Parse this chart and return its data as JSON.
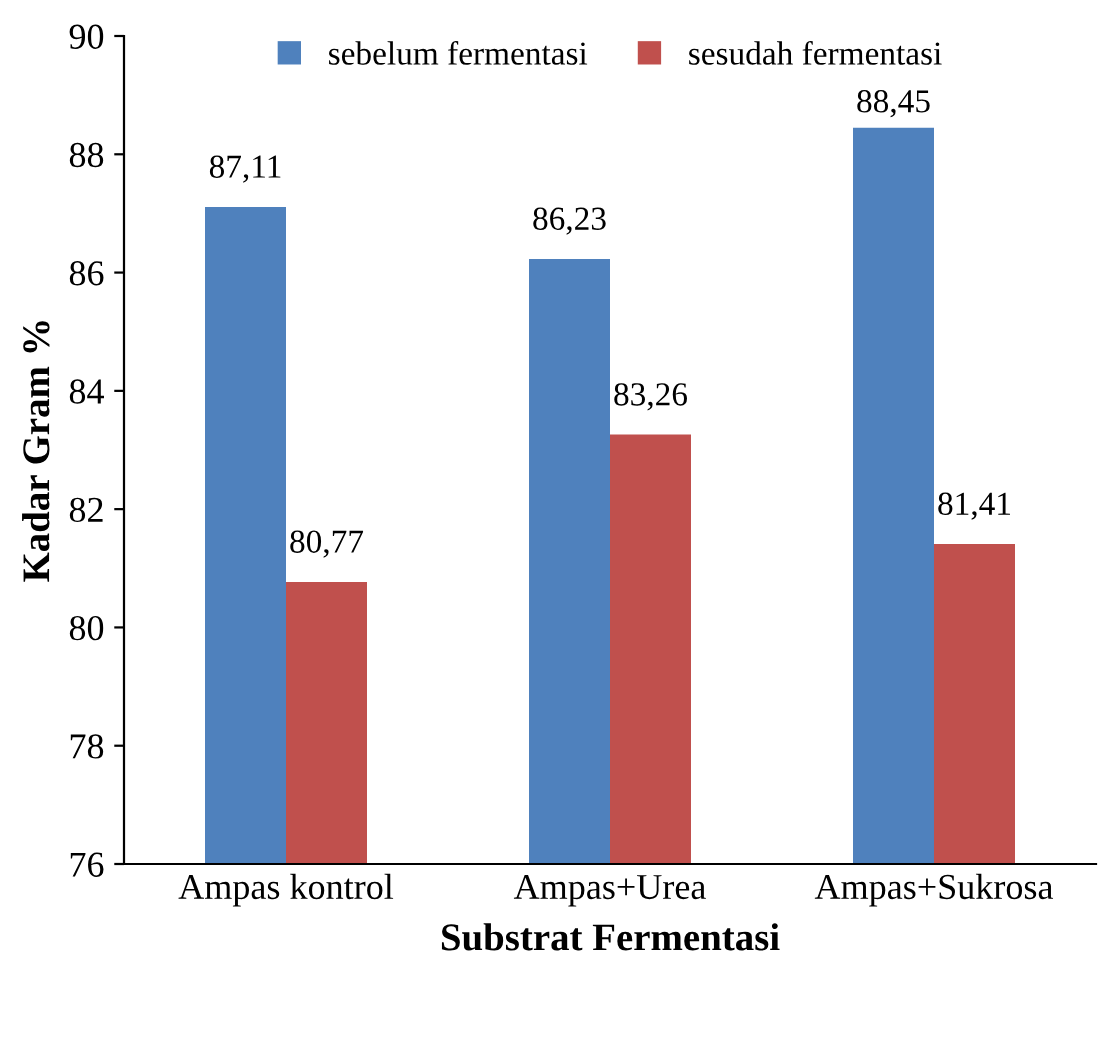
{
  "chart_data": {
    "type": "bar",
    "xlabel": "Substrat Fermentasi",
    "ylabel": "Kadar Gram %",
    "categories": [
      "Ampas kontrol",
      "Ampas+Urea",
      "Ampas+Sukrosa"
    ],
    "series": [
      {
        "name": "sebelum fermentasi",
        "color": "#4f81bd",
        "values": [
          87.11,
          86.23,
          88.45
        ],
        "value_labels": [
          "87,11",
          "86,23",
          "88,45"
        ]
      },
      {
        "name": "sesudah fermentasi",
        "color": "#c0504d",
        "values": [
          80.77,
          83.26,
          81.41
        ],
        "value_labels": [
          "80,77",
          "83,26",
          "81,41"
        ]
      }
    ],
    "ylim": [
      76,
      90
    ],
    "yticks": [
      76,
      78,
      80,
      82,
      84,
      86,
      88,
      90
    ],
    "grid": false,
    "legend": "top"
  }
}
